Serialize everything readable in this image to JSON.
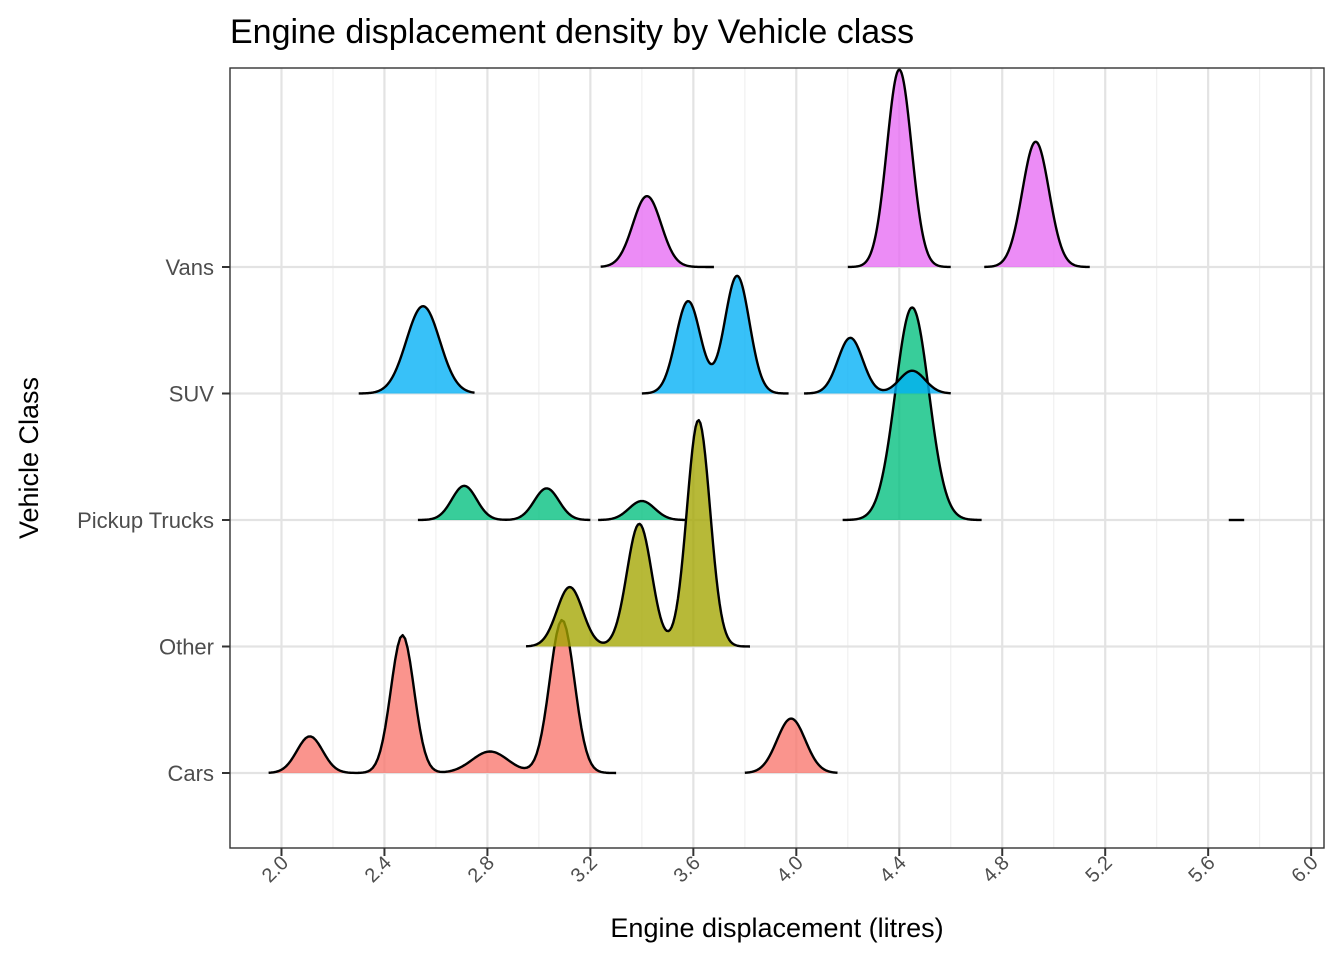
{
  "chart_data": {
    "type": "ridgeline",
    "title": "Engine displacement density by Vehicle class",
    "xlabel": "Engine displacement (litres)",
    "ylabel": "Vehicle Class",
    "xlim": [
      1.8,
      6.05
    ],
    "x_ticks": [
      "2.0",
      "2.4",
      "2.8",
      "3.2",
      "3.6",
      "4.0",
      "4.4",
      "4.8",
      "5.2",
      "5.6",
      "6.0"
    ],
    "categories": [
      "Cars",
      "Other",
      "Pickup Trucks",
      "SUV",
      "Vans"
    ],
    "grid": true,
    "legend": "none",
    "series": [
      {
        "category": "Cars",
        "color": "#F8766D",
        "segments": [
          {
            "range": [
              1.95,
              3.3
            ],
            "peaks": [
              {
                "x": 2.11,
                "h": 0.29,
                "sd": 0.05
              },
              {
                "x": 2.47,
                "h": 1.09,
                "sd": 0.045
              },
              {
                "x": 2.81,
                "h": 0.17,
                "sd": 0.07
              },
              {
                "x": 3.09,
                "h": 1.21,
                "sd": 0.048
              }
            ]
          },
          {
            "range": [
              3.8,
              4.16
            ],
            "peaks": [
              {
                "x": 3.98,
                "h": 0.43,
                "sd": 0.055
              }
            ]
          }
        ]
      },
      {
        "category": "Other",
        "color": "#A3A500",
        "segments": [
          {
            "range": [
              2.95,
              3.82
            ],
            "peaks": [
              {
                "x": 3.12,
                "h": 0.47,
                "sd": 0.05
              },
              {
                "x": 3.39,
                "h": 0.97,
                "sd": 0.048
              },
              {
                "x": 3.62,
                "h": 1.79,
                "sd": 0.045
              }
            ]
          }
        ]
      },
      {
        "category": "Pickup Trucks",
        "color": "#00BF7D",
        "segments": [
          {
            "range": [
              2.53,
              3.2
            ],
            "peaks": [
              {
                "x": 2.71,
                "h": 0.27,
                "sd": 0.048
              },
              {
                "x": 3.03,
                "h": 0.25,
                "sd": 0.048
              }
            ]
          },
          {
            "range": [
              3.23,
              3.57
            ],
            "peaks": [
              {
                "x": 3.4,
                "h": 0.15,
                "sd": 0.05
              }
            ]
          },
          {
            "range": [
              4.18,
              4.72
            ],
            "peaks": [
              {
                "x": 4.45,
                "h": 1.68,
                "sd": 0.065
              }
            ]
          },
          {
            "range": [
              5.68,
              5.74
            ],
            "peaks": []
          }
        ]
      },
      {
        "category": "SUV",
        "color": "#00B0F6",
        "segments": [
          {
            "range": [
              2.3,
              2.75
            ],
            "peaks": [
              {
                "x": 2.55,
                "h": 0.69,
                "sd": 0.065
              }
            ]
          },
          {
            "range": [
              3.4,
              3.97
            ],
            "peaks": [
              {
                "x": 3.58,
                "h": 0.73,
                "sd": 0.048
              },
              {
                "x": 3.77,
                "h": 0.93,
                "sd": 0.048
              }
            ]
          },
          {
            "range": [
              4.03,
              4.6
            ],
            "peaks": [
              {
                "x": 4.21,
                "h": 0.44,
                "sd": 0.048
              },
              {
                "x": 4.45,
                "h": 0.18,
                "sd": 0.05
              }
            ]
          }
        ]
      },
      {
        "category": "Vans",
        "color": "#E76BF3",
        "segments": [
          {
            "range": [
              3.24,
              3.68
            ],
            "peaks": [
              {
                "x": 3.42,
                "h": 0.56,
                "sd": 0.055
              }
            ]
          },
          {
            "range": [
              4.2,
              4.6
            ],
            "peaks": [
              {
                "x": 4.4,
                "h": 1.56,
                "sd": 0.048
              }
            ]
          },
          {
            "range": [
              4.73,
              5.14
            ],
            "peaks": [
              {
                "x": 4.93,
                "h": 0.99,
                "sd": 0.052
              }
            ]
          }
        ]
      }
    ]
  }
}
